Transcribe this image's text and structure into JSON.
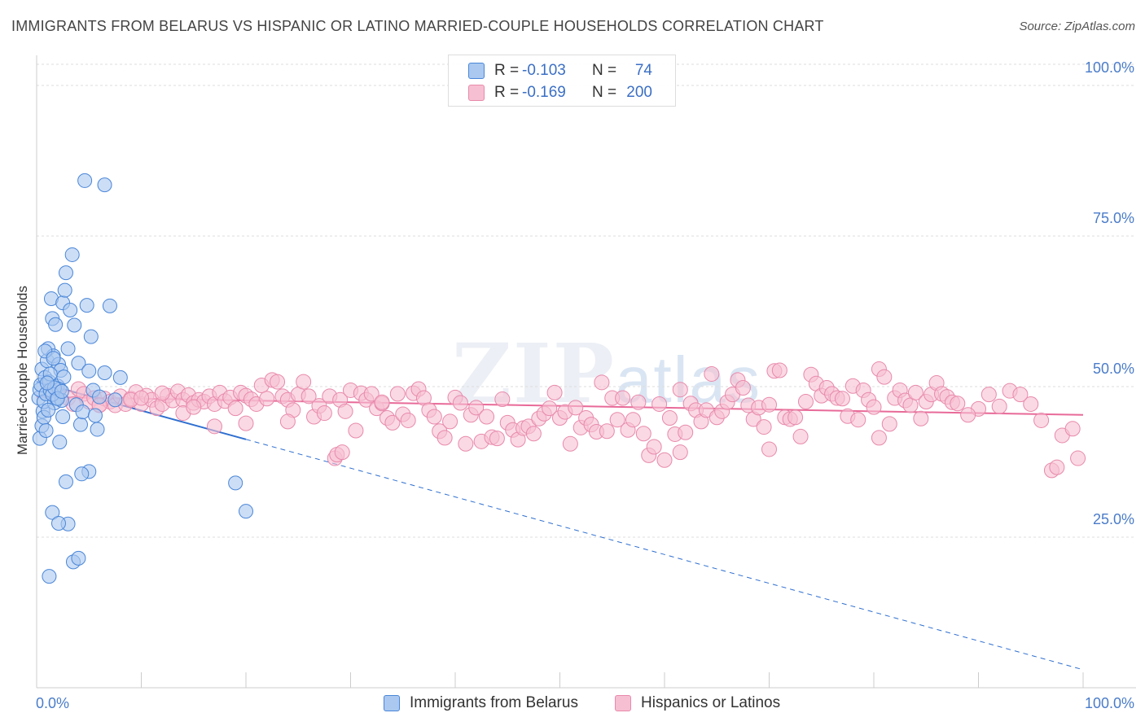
{
  "header": {
    "title": "IMMIGRANTS FROM BELARUS VS HISPANIC OR LATINO MARRIED-COUPLE HOUSEHOLDS CORRELATION CHART",
    "source": "Source: ZipAtlas.com"
  },
  "watermark": {
    "zip": "ZIP",
    "atlas": "atlas"
  },
  "legend": {
    "r_label": "R =",
    "n_label": "N =",
    "items": [
      {
        "r": "-0.103",
        "n": "74"
      },
      {
        "r": "-0.169",
        "n": "200"
      }
    ]
  },
  "bottom_legend": [
    {
      "label": "Immigrants from Belarus"
    },
    {
      "label": "Hispanics or Latinos"
    }
  ],
  "colors": {
    "blue_fill": "#aac8f0",
    "blue_stroke": "#4a86d8",
    "blue_line": "#2f6fd0",
    "pink_fill": "#f7bfd2",
    "pink_stroke": "#e889ab",
    "pink_line": "#e86a98",
    "axis_label": "#4a7cc9"
  },
  "chart_data": {
    "type": "scatter",
    "title": "IMMIGRANTS FROM BELARUS VS HISPANIC OR LATINO MARRIED-COUPLE HOUSEHOLDS CORRELATION CHART",
    "xlabel": "",
    "ylabel": "Married-couple Households",
    "xlim": [
      0,
      100
    ],
    "ylim": [
      0,
      105
    ],
    "x_tick_labels": [
      "0.0%",
      "100.0%"
    ],
    "y_ticks": [
      25,
      50,
      75,
      100
    ],
    "y_tick_labels": [
      "25.0%",
      "50.0%",
      "75.0%",
      "100.0%"
    ],
    "grid": true,
    "legend_position": "top-center",
    "series": [
      {
        "name": "Immigrants from Belarus",
        "R": -0.103,
        "N": 74,
        "trend": {
          "x0": 0,
          "y0": 50.8,
          "x1": 100,
          "y1": 3.0,
          "solid_until_x": 20
        },
        "points": [
          [
            0.2,
            48.1
          ],
          [
            0.3,
            49.5
          ],
          [
            0.4,
            50.3
          ],
          [
            0.5,
            52.9
          ],
          [
            0.6,
            45.9
          ],
          [
            0.7,
            47.5
          ],
          [
            0.8,
            51.5
          ],
          [
            0.9,
            48.8
          ],
          [
            1.0,
            54.3
          ],
          [
            1.1,
            56.3
          ],
          [
            1.2,
            50.8
          ],
          [
            1.3,
            49.4
          ],
          [
            1.4,
            64.6
          ],
          [
            1.5,
            61.3
          ],
          [
            1.6,
            55.1
          ],
          [
            1.7,
            47.3
          ],
          [
            1.8,
            60.3
          ],
          [
            1.9,
            48.1
          ],
          [
            2.0,
            50.1
          ],
          [
            2.1,
            53.7
          ],
          [
            2.2,
            49.6
          ],
          [
            2.3,
            52.7
          ],
          [
            2.4,
            47.7
          ],
          [
            2.5,
            63.9
          ],
          [
            2.6,
            51.6
          ],
          [
            2.7,
            66.0
          ],
          [
            2.8,
            68.9
          ],
          [
            3.0,
            56.3
          ],
          [
            3.2,
            62.7
          ],
          [
            3.4,
            71.9
          ],
          [
            3.6,
            60.2
          ],
          [
            3.8,
            47.0
          ],
          [
            4.0,
            53.9
          ],
          [
            4.2,
            43.7
          ],
          [
            4.4,
            45.8
          ],
          [
            4.6,
            84.2
          ],
          [
            4.8,
            63.5
          ],
          [
            5.0,
            52.6
          ],
          [
            5.2,
            58.3
          ],
          [
            5.4,
            49.4
          ],
          [
            5.6,
            45.2
          ],
          [
            5.8,
            42.9
          ],
          [
            6.0,
            48.3
          ],
          [
            6.5,
            52.3
          ],
          [
            7.0,
            63.4
          ],
          [
            7.5,
            47.8
          ],
          [
            8.0,
            51.5
          ],
          [
            0.3,
            41.4
          ],
          [
            0.5,
            43.5
          ],
          [
            0.7,
            44.9
          ],
          [
            0.9,
            42.7
          ],
          [
            1.1,
            46.1
          ],
          [
            1.3,
            52.1
          ],
          [
            1.5,
            48.7
          ],
          [
            1.7,
            49.8
          ],
          [
            2.0,
            48.0
          ],
          [
            2.2,
            40.8
          ],
          [
            2.5,
            45.0
          ],
          [
            2.8,
            34.2
          ],
          [
            3.0,
            27.2
          ],
          [
            3.5,
            20.9
          ],
          [
            4.0,
            21.5
          ],
          [
            5.0,
            35.9
          ],
          [
            1.2,
            18.5
          ],
          [
            1.5,
            29.1
          ],
          [
            2.1,
            27.3
          ],
          [
            6.5,
            83.5
          ],
          [
            4.3,
            35.5
          ],
          [
            19.0,
            34.0
          ],
          [
            20.0,
            29.3
          ],
          [
            0.8,
            55.9
          ],
          [
            1.0,
            50.6
          ],
          [
            1.6,
            54.7
          ],
          [
            2.4,
            49.2
          ]
        ]
      },
      {
        "name": "Hispanics or Latinos",
        "R": -0.169,
        "N": 200,
        "trend": {
          "x0": 0,
          "y0": 48.3,
          "x1": 100,
          "y1": 45.3
        },
        "points": [
          [
            2,
            49.2
          ],
          [
            3,
            48.1
          ],
          [
            4,
            49.6
          ],
          [
            4.5,
            48.8
          ],
          [
            5,
            47.5
          ],
          [
            5.5,
            48.1
          ],
          [
            6,
            47.0
          ],
          [
            6.5,
            48.0
          ],
          [
            7,
            47.5
          ],
          [
            7.5,
            46.9
          ],
          [
            8,
            48.4
          ],
          [
            8.5,
            47.1
          ],
          [
            9,
            48.0
          ],
          [
            9.5,
            49.1
          ],
          [
            10,
            47.1
          ],
          [
            10.5,
            48.5
          ],
          [
            11,
            47.8
          ],
          [
            11.5,
            46.4
          ],
          [
            12,
            47.1
          ],
          [
            12.5,
            48.5
          ],
          [
            13,
            47.7
          ],
          [
            13.5,
            49.2
          ],
          [
            14,
            47.8
          ],
          [
            14.5,
            48.6
          ],
          [
            15,
            47.3
          ],
          [
            15.5,
            47.8
          ],
          [
            16,
            47.5
          ],
          [
            16.5,
            48.4
          ],
          [
            17,
            47.1
          ],
          [
            17.5,
            49.0
          ],
          [
            18,
            47.6
          ],
          [
            18.5,
            48.2
          ],
          [
            19,
            46.4
          ],
          [
            19.5,
            49.0
          ],
          [
            20,
            48.5
          ],
          [
            20.5,
            47.9
          ],
          [
            21,
            47.1
          ],
          [
            21.5,
            50.2
          ],
          [
            22,
            48.0
          ],
          [
            22.5,
            51.1
          ],
          [
            23,
            50.8
          ],
          [
            23.5,
            48.4
          ],
          [
            24,
            47.8
          ],
          [
            24.5,
            46.1
          ],
          [
            25,
            48.7
          ],
          [
            25.5,
            50.8
          ],
          [
            26,
            48.4
          ],
          [
            26.5,
            45.0
          ],
          [
            27,
            46.8
          ],
          [
            27.5,
            45.6
          ],
          [
            28,
            48.4
          ],
          [
            28.5,
            38.1
          ],
          [
            29,
            47.8
          ],
          [
            29.5,
            45.9
          ],
          [
            30,
            49.4
          ],
          [
            30.5,
            42.7
          ],
          [
            31,
            48.9
          ],
          [
            31.5,
            47.8
          ],
          [
            32,
            48.8
          ],
          [
            32.5,
            46.4
          ],
          [
            33,
            47.2
          ],
          [
            33.5,
            44.8
          ],
          [
            34,
            44.0
          ],
          [
            34.5,
            48.8
          ],
          [
            35,
            45.4
          ],
          [
            35.5,
            44.4
          ],
          [
            36,
            48.9
          ],
          [
            36.5,
            49.6
          ],
          [
            37,
            48.1
          ],
          [
            37.5,
            46.1
          ],
          [
            38,
            45.0
          ],
          [
            38.5,
            42.6
          ],
          [
            39,
            41.5
          ],
          [
            39.5,
            44.2
          ],
          [
            40,
            48.2
          ],
          [
            40.5,
            47.3
          ],
          [
            41,
            40.5
          ],
          [
            41.5,
            45.3
          ],
          [
            42,
            46.5
          ],
          [
            42.5,
            40.9
          ],
          [
            43,
            45.0
          ],
          [
            43.5,
            41.6
          ],
          [
            44,
            41.4
          ],
          [
            44.5,
            47.9
          ],
          [
            45,
            44.0
          ],
          [
            45.5,
            42.8
          ],
          [
            46,
            41.2
          ],
          [
            46.5,
            43.1
          ],
          [
            47,
            43.4
          ],
          [
            47.5,
            42.2
          ],
          [
            48,
            44.7
          ],
          [
            48.5,
            45.5
          ],
          [
            49,
            46.4
          ],
          [
            49.5,
            49.0
          ],
          [
            50,
            44.8
          ],
          [
            50.5,
            45.8
          ],
          [
            51,
            40.5
          ],
          [
            51.5,
            46.5
          ],
          [
            52,
            43.2
          ],
          [
            52.5,
            44.8
          ],
          [
            53,
            43.7
          ],
          [
            53.5,
            42.5
          ],
          [
            54,
            50.7
          ],
          [
            54.5,
            42.6
          ],
          [
            55,
            48.1
          ],
          [
            55.5,
            44.5
          ],
          [
            56,
            48.1
          ],
          [
            56.5,
            42.8
          ],
          [
            57,
            44.5
          ],
          [
            57.5,
            47.4
          ],
          [
            58,
            42.2
          ],
          [
            58.5,
            38.6
          ],
          [
            59,
            40.0
          ],
          [
            59.5,
            47.1
          ],
          [
            60,
            37.8
          ],
          [
            60.5,
            44.8
          ],
          [
            61,
            42.1
          ],
          [
            61.5,
            49.5
          ],
          [
            62,
            42.4
          ],
          [
            62.5,
            47.2
          ],
          [
            63,
            46.1
          ],
          [
            63.5,
            44.2
          ],
          [
            64,
            46.1
          ],
          [
            64.5,
            52.1
          ],
          [
            65,
            44.9
          ],
          [
            65.5,
            45.9
          ],
          [
            66,
            47.4
          ],
          [
            66.5,
            48.7
          ],
          [
            67,
            51.1
          ],
          [
            67.5,
            49.8
          ],
          [
            68,
            46.9
          ],
          [
            68.5,
            44.6
          ],
          [
            69,
            46.5
          ],
          [
            69.5,
            43.3
          ],
          [
            70,
            47.0
          ],
          [
            70.5,
            52.6
          ],
          [
            71,
            52.7
          ],
          [
            71.5,
            44.9
          ],
          [
            72,
            44.6
          ],
          [
            72.5,
            44.9
          ],
          [
            73,
            41.7
          ],
          [
            73.5,
            47.5
          ],
          [
            74,
            52.0
          ],
          [
            74.5,
            50.5
          ],
          [
            75,
            48.5
          ],
          [
            75.5,
            49.8
          ],
          [
            76,
            48.8
          ],
          [
            76.5,
            48.1
          ],
          [
            77,
            48.0
          ],
          [
            77.5,
            45.1
          ],
          [
            78,
            50.1
          ],
          [
            78.5,
            44.5
          ],
          [
            79,
            49.4
          ],
          [
            79.5,
            47.8
          ],
          [
            80,
            46.6
          ],
          [
            80.5,
            52.9
          ],
          [
            81,
            51.6
          ],
          [
            81.5,
            43.8
          ],
          [
            82,
            48.1
          ],
          [
            82.5,
            49.4
          ],
          [
            83,
            47.7
          ],
          [
            83.5,
            46.9
          ],
          [
            84,
            49.0
          ],
          [
            84.5,
            44.7
          ],
          [
            85,
            47.5
          ],
          [
            85.5,
            48.7
          ],
          [
            86,
            50.6
          ],
          [
            86.5,
            48.8
          ],
          [
            87,
            48.3
          ],
          [
            87.5,
            47.4
          ],
          [
            88,
            47.2
          ],
          [
            98,
            41.9
          ],
          [
            99,
            43.0
          ],
          [
            97,
            36.1
          ],
          [
            97.5,
            36.6
          ],
          [
            99.5,
            38.1
          ],
          [
            28.7,
            38.7
          ],
          [
            29.2,
            39.1
          ],
          [
            61.5,
            39.1
          ],
          [
            70,
            39.6
          ],
          [
            80.5,
            41.5
          ],
          [
            95,
            47.1
          ],
          [
            96,
            44.4
          ],
          [
            93,
            49.3
          ],
          [
            91,
            48.7
          ],
          [
            90,
            46.3
          ],
          [
            24,
            44.2
          ],
          [
            17,
            43.4
          ],
          [
            14,
            45.6
          ],
          [
            20,
            43.9
          ],
          [
            9,
            47.8
          ],
          [
            3.5,
            47.1
          ],
          [
            6,
            46.9
          ],
          [
            10,
            48.1
          ],
          [
            12,
            48.9
          ],
          [
            15,
            46.6
          ],
          [
            94,
            48.7
          ],
          [
            92,
            46.7
          ],
          [
            89,
            45.3
          ],
          [
            33,
            47.4
          ]
        ]
      }
    ]
  }
}
